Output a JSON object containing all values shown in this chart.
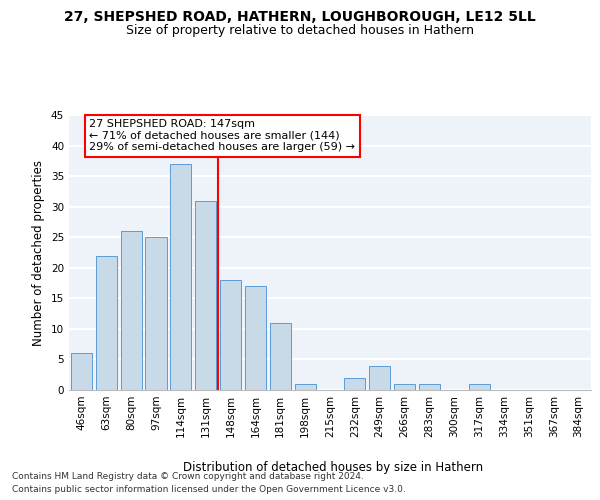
{
  "title_line1": "27, SHEPSHED ROAD, HATHERN, LOUGHBOROUGH, LE12 5LL",
  "title_line2": "Size of property relative to detached houses in Hathern",
  "xlabel": "Distribution of detached houses by size in Hathern",
  "ylabel": "Number of detached properties",
  "categories": [
    "46sqm",
    "63sqm",
    "80sqm",
    "97sqm",
    "114sqm",
    "131sqm",
    "148sqm",
    "164sqm",
    "181sqm",
    "198sqm",
    "215sqm",
    "232sqm",
    "249sqm",
    "266sqm",
    "283sqm",
    "300sqm",
    "317sqm",
    "334sqm",
    "351sqm",
    "367sqm",
    "384sqm"
  ],
  "values": [
    6,
    22,
    26,
    25,
    37,
    31,
    18,
    17,
    11,
    1,
    0,
    2,
    4,
    1,
    1,
    0,
    1,
    0,
    0,
    0,
    0
  ],
  "bar_color": "#c8d9e8",
  "bar_edge_color": "#5b9bd5",
  "vline_pos": 5.5,
  "annotation_text_line1": "27 SHEPSHED ROAD: 147sqm",
  "annotation_text_line2": "← 71% of detached houses are smaller (144)",
  "annotation_text_line3": "29% of semi-detached houses are larger (59) →",
  "annotation_box_color": "white",
  "annotation_box_edge": "red",
  "vline_color": "red",
  "ylim": [
    0,
    45
  ],
  "yticks": [
    0,
    5,
    10,
    15,
    20,
    25,
    30,
    35,
    40,
    45
  ],
  "footer_line1": "Contains HM Land Registry data © Crown copyright and database right 2024.",
  "footer_line2": "Contains public sector information licensed under the Open Government Licence v3.0.",
  "bg_color": "#eef2f9",
  "grid_color": "#ffffff",
  "title_fontsize": 10,
  "subtitle_fontsize": 9,
  "axis_label_fontsize": 8.5,
  "tick_fontsize": 7.5,
  "annotation_fontsize": 8,
  "footer_fontsize": 6.5
}
